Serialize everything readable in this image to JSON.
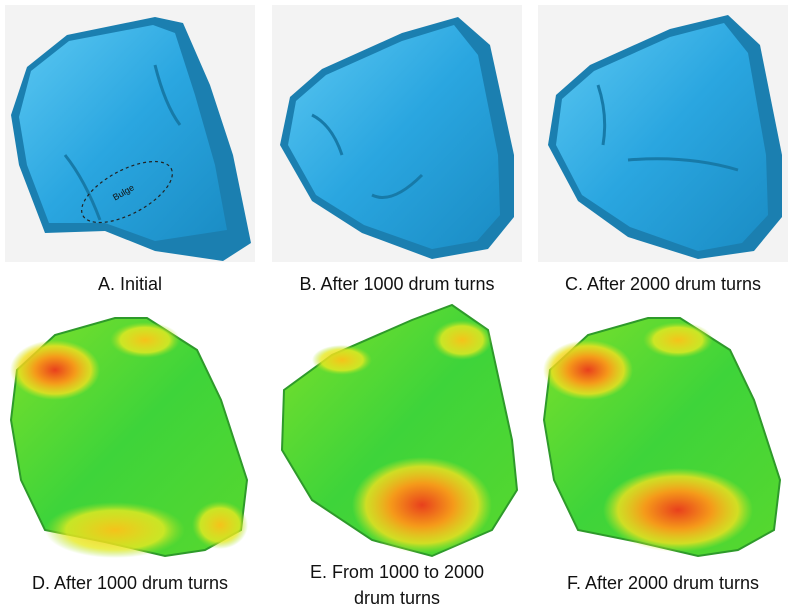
{
  "panels": [
    {
      "caption": "A. Initial",
      "annotation": "Bulge"
    },
    {
      "caption": "B. After 1000 drum turns"
    },
    {
      "caption": "C. After 2000 drum turns"
    },
    {
      "caption": "D. After 1000 drum turns"
    },
    {
      "caption": "E. From 1000 to 2000 drum turns"
    },
    {
      "caption": "F. After 2000 drum turns"
    }
  ]
}
